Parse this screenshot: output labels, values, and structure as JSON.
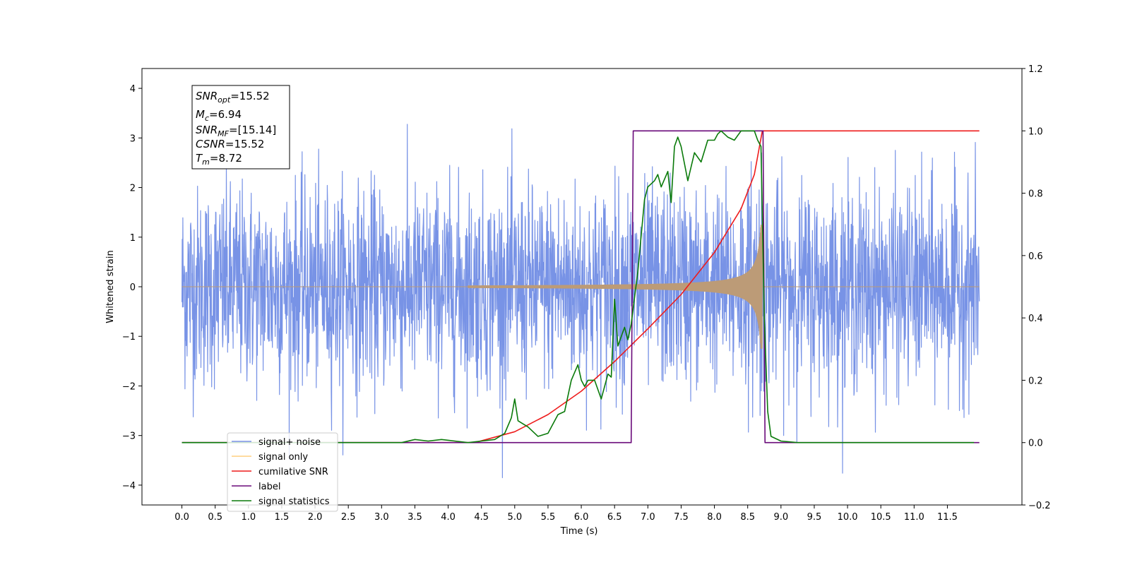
{
  "chart_data": {
    "type": "line",
    "xlabel": "Time (s)",
    "ylabel": "Whitened strain",
    "xlim": [
      -0.6,
      12.62
    ],
    "xticks": [
      0.0,
      0.5,
      1.0,
      1.5,
      2.0,
      2.5,
      3.0,
      3.5,
      4.0,
      4.5,
      5.0,
      5.5,
      6.0,
      6.5,
      7.0,
      7.5,
      8.0,
      8.5,
      9.0,
      9.5,
      10.0,
      10.5,
      11.0,
      11.5
    ],
    "xtick_labels": [
      "0.0",
      "0.5",
      "1.0",
      "1.5",
      "2.0",
      "2.5",
      "3.0",
      "3.5",
      "4.0",
      "4.5",
      "5.0",
      "5.5",
      "6.0",
      "6.5",
      "7.0",
      "7.5",
      "8.0",
      "8.5",
      "9.0",
      "9.5",
      "10.0",
      "10.5",
      "11.0",
      "11.5"
    ],
    "ylim_left": [
      -4.4,
      4.4
    ],
    "yticks_left": [
      -4,
      -3,
      -2,
      -1,
      0,
      1,
      2,
      3,
      4
    ],
    "ytick_labels_left": [
      "−4",
      "−3",
      "−2",
      "−1",
      "0",
      "1",
      "2",
      "3",
      "4"
    ],
    "ylim_right": [
      -0.2,
      1.2
    ],
    "yticks_right": [
      -0.2,
      0.0,
      0.2,
      0.4,
      0.6,
      0.8,
      1.0,
      1.2
    ],
    "ytick_labels_right": [
      "−0.2",
      "0.0",
      "0.2",
      "0.4",
      "0.6",
      "0.8",
      "1.0",
      "1.2"
    ],
    "grid": false,
    "legend_position": "lower-left",
    "annotation": {
      "snr_opt": {
        "base": "SNR",
        "sub": "opt",
        "value": "=15.52"
      },
      "mc": {
        "base": "M",
        "sub": "c",
        "value": "=6.94"
      },
      "snr_mf": {
        "base": "SNR",
        "sub": "MF",
        "value": "=[15.14]"
      },
      "csnr": {
        "base": "CSNR",
        "value": "=15.52"
      },
      "tm": {
        "base": "T",
        "sub": "m",
        "value": "=8.72"
      }
    },
    "series": [
      {
        "name": "signal+ noise",
        "axis": "left",
        "color": "#7893e6",
        "description_values": {
          "t_start": 0.0,
          "t_end": 11.98,
          "noise_sigma": 1.0,
          "max_value": 4.1,
          "min_value": -3.85
        }
      },
      {
        "name": "signal only",
        "axis": "left",
        "color": "#bc9b77",
        "chirp": {
          "t_start": 4.3,
          "t_merge": 8.72,
          "peak_amplitude": 1.25
        }
      },
      {
        "name": "cumilative SNR",
        "axis": "right",
        "color": "#ee1c1c",
        "points": [
          [
            0.0,
            0.0
          ],
          [
            4.4,
            0.0
          ],
          [
            5.0,
            0.035
          ],
          [
            5.5,
            0.09
          ],
          [
            6.0,
            0.165
          ],
          [
            6.5,
            0.26
          ],
          [
            7.0,
            0.365
          ],
          [
            7.5,
            0.475
          ],
          [
            8.0,
            0.61
          ],
          [
            8.4,
            0.75
          ],
          [
            8.6,
            0.86
          ],
          [
            8.72,
            1.0
          ],
          [
            11.98,
            1.0
          ]
        ]
      },
      {
        "name": "label",
        "axis": "right",
        "color": "#6a0a7a",
        "points": [
          [
            0.0,
            0.0
          ],
          [
            6.75,
            0.0
          ],
          [
            6.78,
            1.0
          ],
          [
            8.73,
            1.0
          ],
          [
            8.76,
            0.0
          ],
          [
            11.98,
            0.0
          ]
        ]
      },
      {
        "name": "signal statistics",
        "axis": "right",
        "color": "#0a7a0a",
        "points": [
          [
            0.0,
            0.0
          ],
          [
            3.3,
            0.0
          ],
          [
            3.5,
            0.01
          ],
          [
            3.7,
            0.005
          ],
          [
            3.9,
            0.01
          ],
          [
            4.1,
            0.005
          ],
          [
            4.3,
            0.0
          ],
          [
            4.5,
            0.005
          ],
          [
            4.7,
            0.01
          ],
          [
            4.85,
            0.03
          ],
          [
            4.95,
            0.08
          ],
          [
            5.0,
            0.14
          ],
          [
            5.05,
            0.07
          ],
          [
            5.2,
            0.05
          ],
          [
            5.35,
            0.02
          ],
          [
            5.5,
            0.03
          ],
          [
            5.65,
            0.09
          ],
          [
            5.75,
            0.1
          ],
          [
            5.85,
            0.2
          ],
          [
            5.95,
            0.25
          ],
          [
            6.0,
            0.2
          ],
          [
            6.05,
            0.18
          ],
          [
            6.1,
            0.2
          ],
          [
            6.2,
            0.2
          ],
          [
            6.3,
            0.14
          ],
          [
            6.4,
            0.22
          ],
          [
            6.45,
            0.21
          ],
          [
            6.5,
            0.46
          ],
          [
            6.55,
            0.31
          ],
          [
            6.65,
            0.37
          ],
          [
            6.7,
            0.33
          ],
          [
            6.75,
            0.38
          ],
          [
            6.85,
            0.55
          ],
          [
            6.95,
            0.78
          ],
          [
            7.0,
            0.82
          ],
          [
            7.1,
            0.84
          ],
          [
            7.15,
            0.86
          ],
          [
            7.2,
            0.82
          ],
          [
            7.3,
            0.87
          ],
          [
            7.35,
            0.77
          ],
          [
            7.4,
            0.95
          ],
          [
            7.45,
            0.98
          ],
          [
            7.5,
            0.95
          ],
          [
            7.6,
            0.84
          ],
          [
            7.7,
            0.93
          ],
          [
            7.8,
            0.9
          ],
          [
            7.9,
            0.97
          ],
          [
            8.0,
            0.97
          ],
          [
            8.05,
            0.99
          ],
          [
            8.1,
            1.0
          ],
          [
            8.2,
            0.98
          ],
          [
            8.3,
            0.97
          ],
          [
            8.4,
            1.0
          ],
          [
            8.5,
            1.0
          ],
          [
            8.6,
            1.0
          ],
          [
            8.65,
            0.97
          ],
          [
            8.7,
            0.95
          ],
          [
            8.75,
            0.4
          ],
          [
            8.8,
            0.1
          ],
          [
            8.85,
            0.02
          ],
          [
            9.0,
            0.005
          ],
          [
            9.25,
            0.0
          ],
          [
            11.9,
            0.0
          ]
        ]
      }
    ]
  },
  "legend": {
    "items": [
      {
        "label": "signal+ noise",
        "color": "#7893e6"
      },
      {
        "label": "signal only",
        "color": "#ffcf80"
      },
      {
        "label": "cumilative SNR",
        "color": "#ee1c1c"
      },
      {
        "label": "label",
        "color": "#6a0a7a"
      },
      {
        "label": "signal statistics",
        "color": "#0a7a0a"
      }
    ]
  }
}
